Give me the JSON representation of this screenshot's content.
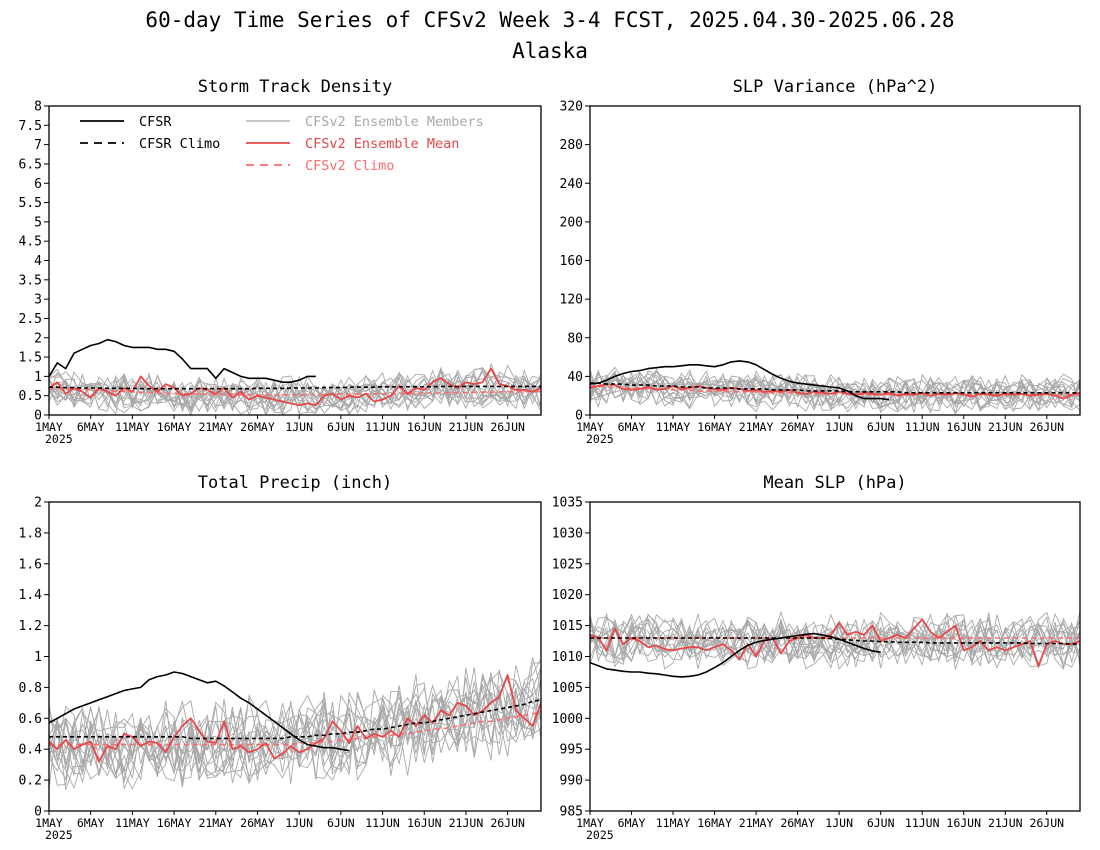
{
  "figure": {
    "title": "60-day Time Series of CFSv2 Week 3-4 FCST, 2025.04.30-2025.06.28",
    "subtitle": "Alaska"
  },
  "legend": {
    "cfsr": "CFSR",
    "cfsr_climo": "CFSR Climo",
    "members": "CFSv2 Ensemble Members",
    "ens_mean": "CFSv2 Ensemble Mean",
    "cfsv2_climo": "CFSv2 Climo"
  },
  "colors": {
    "cfsr": "#000000",
    "members": "#a8a8a8",
    "ens_mean": "#e8474a",
    "cfsv2_climo": "#ff6b6b"
  },
  "x_axis": {
    "start_date": "2025-05-01",
    "num_days": 60,
    "tick_labels": [
      "1MAY",
      "6MAY",
      "11MAY",
      "16MAY",
      "21MAY",
      "26MAY",
      "1JUN",
      "6JUN",
      "11JUN",
      "16JUN",
      "21JUN",
      "26JUN"
    ],
    "year_label": "2025"
  },
  "chart_data": [
    {
      "type": "line",
      "title": "Storm Track Density",
      "ylim": [
        0,
        8
      ],
      "yticks": [
        "0",
        "0.5",
        "1",
        "1.5",
        "2",
        "2.5",
        "3",
        "3.5",
        "4",
        "4.5",
        "5",
        "5.5",
        "6",
        "6.5",
        "7",
        "7.5",
        "8"
      ],
      "cfsr": [
        1.0,
        1.35,
        1.2,
        1.6,
        1.7,
        1.8,
        1.85,
        1.95,
        1.9,
        1.8,
        1.75,
        1.75,
        1.75,
        1.7,
        1.7,
        1.65,
        1.45,
        1.2,
        1.2,
        1.2,
        0.95,
        1.2,
        1.1,
        1.0,
        0.95,
        0.95,
        0.95,
        0.9,
        0.85,
        0.85,
        0.9,
        1.0,
        1.0
      ],
      "cfsr_climo": [
        0.72,
        0.72,
        0.71,
        0.71,
        0.7,
        0.7,
        0.7,
        0.69,
        0.69,
        0.69,
        0.69,
        0.68,
        0.68,
        0.68,
        0.68,
        0.68,
        0.68,
        0.68,
        0.68,
        0.68,
        0.68,
        0.68,
        0.68,
        0.68,
        0.68,
        0.69,
        0.69,
        0.69,
        0.69,
        0.7,
        0.7,
        0.7,
        0.7,
        0.71,
        0.71,
        0.71,
        0.72,
        0.72,
        0.72,
        0.72,
        0.73,
        0.73,
        0.73,
        0.73,
        0.73,
        0.73,
        0.73,
        0.74,
        0.74,
        0.74,
        0.74,
        0.74,
        0.74,
        0.74,
        0.74,
        0.74,
        0.74,
        0.74,
        0.74,
        0.74
      ],
      "ens_mean": [
        0.7,
        0.85,
        0.55,
        0.7,
        0.6,
        0.45,
        0.7,
        0.6,
        0.5,
        0.7,
        0.6,
        1.0,
        0.75,
        0.6,
        0.8,
        0.7,
        0.5,
        0.55,
        0.7,
        0.65,
        0.55,
        0.7,
        0.45,
        0.6,
        0.4,
        0.5,
        0.45,
        0.4,
        0.35,
        0.3,
        0.25,
        0.3,
        0.25,
        0.5,
        0.55,
        0.4,
        0.5,
        0.45,
        0.55,
        0.35,
        0.4,
        0.5,
        0.75,
        0.55,
        0.7,
        0.65,
        0.85,
        0.95,
        0.8,
        0.7,
        0.85,
        0.8,
        0.85,
        1.2,
        0.8,
        0.75,
        0.65,
        0.65,
        0.6,
        0.7
      ],
      "cfsv2_climo": [
        0.7,
        0.69,
        0.68,
        0.67,
        0.66,
        0.65,
        0.64,
        0.63,
        0.62,
        0.61,
        0.6,
        0.59,
        0.58,
        0.57,
        0.56,
        0.56,
        0.55,
        0.55,
        0.54,
        0.54,
        0.53,
        0.53,
        0.53,
        0.52,
        0.52,
        0.52,
        0.52,
        0.52,
        0.52,
        0.52,
        0.52,
        0.53,
        0.53,
        0.53,
        0.53,
        0.54,
        0.54,
        0.54,
        0.55,
        0.55,
        0.55,
        0.55,
        0.56,
        0.56,
        0.56,
        0.57,
        0.57,
        0.57,
        0.58,
        0.58,
        0.58,
        0.59,
        0.59,
        0.59,
        0.6,
        0.6,
        0.6,
        0.6,
        0.61,
        0.61
      ],
      "members_center": [
        0.6,
        0.65,
        0.6,
        0.6,
        0.6,
        0.55,
        0.6,
        0.55,
        0.55,
        0.6,
        0.55,
        0.6,
        0.6,
        0.55,
        0.55,
        0.55,
        0.5,
        0.5,
        0.55,
        0.5,
        0.5,
        0.5,
        0.5,
        0.5,
        0.45,
        0.45,
        0.45,
        0.45,
        0.45,
        0.45,
        0.45,
        0.45,
        0.45,
        0.5,
        0.5,
        0.5,
        0.5,
        0.5,
        0.5,
        0.5,
        0.55,
        0.55,
        0.6,
        0.6,
        0.6,
        0.65,
        0.7,
        0.7,
        0.7,
        0.7,
        0.7,
        0.7,
        0.7,
        0.75,
        0.7,
        0.7,
        0.65,
        0.65,
        0.6,
        0.6
      ],
      "members_spread": 0.55,
      "members_count": 16,
      "members_min": 0
    },
    {
      "type": "line",
      "title": "SLP Variance (hPa^2)",
      "ylim": [
        0,
        320
      ],
      "yticks": [
        "0",
        "40",
        "80",
        "120",
        "160",
        "200",
        "240",
        "280",
        "320"
      ],
      "cfsr": [
        32,
        33,
        36,
        40,
        43,
        45,
        46,
        48,
        49,
        50,
        50,
        51,
        52,
        52,
        51,
        50,
        52,
        55,
        56,
        55,
        52,
        47,
        42,
        38,
        35,
        33,
        32,
        31,
        30,
        29,
        28,
        25,
        20,
        17,
        17,
        17,
        16
      ],
      "cfsr_climo": [
        33,
        33,
        32,
        32,
        32,
        31,
        31,
        31,
        30,
        30,
        30,
        29,
        29,
        29,
        28,
        28,
        28,
        28,
        27,
        27,
        27,
        27,
        26,
        26,
        26,
        26,
        25,
        25,
        25,
        25,
        25,
        24,
        24,
        24,
        24,
        24,
        24,
        24,
        23,
        23,
        23,
        23,
        23,
        23,
        23,
        23,
        23,
        23,
        23,
        23,
        23,
        23,
        23,
        23,
        23,
        23,
        23,
        23,
        23,
        23
      ],
      "ens_mean": [
        28,
        30,
        32,
        31,
        27,
        26,
        27,
        29,
        26,
        27,
        30,
        27,
        28,
        30,
        28,
        27,
        26,
        28,
        27,
        25,
        26,
        24,
        25,
        24,
        26,
        23,
        22,
        24,
        23,
        22,
        24,
        22,
        21,
        23,
        22,
        21,
        23,
        20,
        22,
        21,
        23,
        20,
        22,
        21,
        23,
        21,
        19,
        22,
        21,
        20,
        22,
        21,
        22,
        20,
        21,
        22,
        20,
        17,
        21,
        23
      ],
      "cfsv2_climo": [
        30,
        30,
        29,
        29,
        28,
        28,
        28,
        27,
        27,
        27,
        26,
        26,
        26,
        25,
        25,
        25,
        25,
        24,
        24,
        24,
        24,
        23,
        23,
        23,
        23,
        23,
        22,
        22,
        22,
        22,
        22,
        22,
        22,
        21,
        21,
        21,
        21,
        21,
        21,
        21,
        21,
        21,
        21,
        21,
        21,
        21,
        21,
        21,
        21,
        21,
        21,
        21,
        21,
        21,
        21,
        21,
        21,
        21,
        21,
        21
      ],
      "members_center": [
        28,
        29,
        29,
        29,
        28,
        27,
        27,
        27,
        27,
        27,
        27,
        27,
        27,
        27,
        27,
        26,
        26,
        26,
        26,
        25,
        25,
        25,
        25,
        24,
        24,
        24,
        23,
        23,
        23,
        23,
        22,
        22,
        22,
        22,
        22,
        22,
        22,
        22,
        22,
        22,
        22,
        22,
        22,
        22,
        22,
        22,
        22,
        22,
        22,
        22,
        22,
        22,
        22,
        22,
        22,
        22,
        22,
        22,
        22,
        22
      ],
      "members_spread": 20,
      "members_count": 16,
      "members_min": 0
    },
    {
      "type": "line",
      "title": "Total Precip (inch)",
      "ylim": [
        0,
        2
      ],
      "yticks": [
        "0",
        "0.2",
        "0.4",
        "0.6",
        "0.8",
        "1",
        "1.2",
        "1.4",
        "1.6",
        "1.8",
        "2"
      ],
      "cfsr": [
        0.57,
        0.6,
        0.63,
        0.66,
        0.68,
        0.7,
        0.72,
        0.74,
        0.76,
        0.78,
        0.79,
        0.8,
        0.85,
        0.87,
        0.88,
        0.9,
        0.89,
        0.87,
        0.85,
        0.83,
        0.84,
        0.81,
        0.77,
        0.73,
        0.7,
        0.66,
        0.62,
        0.58,
        0.54,
        0.5,
        0.46,
        0.43,
        0.42,
        0.41,
        0.41,
        0.4,
        0.39
      ],
      "cfsr_climo": [
        0.48,
        0.48,
        0.48,
        0.48,
        0.48,
        0.48,
        0.48,
        0.48,
        0.48,
        0.48,
        0.48,
        0.48,
        0.48,
        0.48,
        0.48,
        0.48,
        0.48,
        0.47,
        0.47,
        0.47,
        0.47,
        0.47,
        0.47,
        0.47,
        0.47,
        0.47,
        0.47,
        0.47,
        0.47,
        0.48,
        0.48,
        0.48,
        0.49,
        0.49,
        0.5,
        0.5,
        0.51,
        0.51,
        0.52,
        0.53,
        0.53,
        0.54,
        0.55,
        0.56,
        0.57,
        0.57,
        0.58,
        0.59,
        0.6,
        0.61,
        0.62,
        0.63,
        0.64,
        0.65,
        0.66,
        0.67,
        0.68,
        0.69,
        0.71,
        0.72
      ],
      "ens_mean": [
        0.45,
        0.4,
        0.46,
        0.4,
        0.43,
        0.45,
        0.32,
        0.42,
        0.4,
        0.5,
        0.48,
        0.42,
        0.45,
        0.44,
        0.38,
        0.48,
        0.55,
        0.6,
        0.52,
        0.45,
        0.44,
        0.58,
        0.4,
        0.42,
        0.38,
        0.4,
        0.44,
        0.34,
        0.37,
        0.42,
        0.38,
        0.4,
        0.44,
        0.47,
        0.58,
        0.52,
        0.44,
        0.55,
        0.47,
        0.5,
        0.48,
        0.52,
        0.48,
        0.6,
        0.55,
        0.62,
        0.57,
        0.65,
        0.62,
        0.7,
        0.68,
        0.62,
        0.65,
        0.7,
        0.74,
        0.88,
        0.65,
        0.6,
        0.55,
        0.7
      ],
      "cfsv2_climo": [
        0.43,
        0.43,
        0.43,
        0.43,
        0.43,
        0.43,
        0.43,
        0.43,
        0.43,
        0.43,
        0.43,
        0.43,
        0.43,
        0.43,
        0.43,
        0.43,
        0.43,
        0.43,
        0.43,
        0.43,
        0.43,
        0.43,
        0.43,
        0.43,
        0.43,
        0.43,
        0.43,
        0.43,
        0.43,
        0.43,
        0.44,
        0.44,
        0.44,
        0.45,
        0.45,
        0.46,
        0.46,
        0.47,
        0.47,
        0.48,
        0.48,
        0.49,
        0.5,
        0.5,
        0.51,
        0.52,
        0.53,
        0.53,
        0.54,
        0.55,
        0.56,
        0.57,
        0.58,
        0.58,
        0.59,
        0.6,
        0.61,
        0.62,
        0.63,
        0.64
      ],
      "members_center": [
        0.44,
        0.44,
        0.44,
        0.44,
        0.44,
        0.44,
        0.44,
        0.44,
        0.44,
        0.44,
        0.44,
        0.44,
        0.44,
        0.44,
        0.44,
        0.44,
        0.44,
        0.44,
        0.44,
        0.44,
        0.44,
        0.44,
        0.44,
        0.44,
        0.44,
        0.44,
        0.44,
        0.44,
        0.44,
        0.45,
        0.45,
        0.46,
        0.46,
        0.47,
        0.48,
        0.48,
        0.49,
        0.5,
        0.5,
        0.51,
        0.52,
        0.53,
        0.54,
        0.55,
        0.56,
        0.57,
        0.58,
        0.59,
        0.6,
        0.61,
        0.62,
        0.63,
        0.64,
        0.65,
        0.66,
        0.67,
        0.68,
        0.68,
        0.69,
        0.7
      ],
      "members_spread": 0.3,
      "members_count": 16,
      "members_min": 0.1
    },
    {
      "type": "line",
      "title": "Mean SLP (hPa)",
      "ylim": [
        985,
        1035
      ],
      "yticks": [
        "985",
        "990",
        "995",
        "1000",
        "1005",
        "1010",
        "1015",
        "1020",
        "1025",
        "1030",
        "1035"
      ],
      "cfsr": [
        1009,
        1008.5,
        1008,
        1007.8,
        1007.6,
        1007.5,
        1007.5,
        1007.3,
        1007.2,
        1007,
        1006.8,
        1006.7,
        1006.8,
        1007,
        1007.5,
        1008.2,
        1009,
        1010,
        1011,
        1011.8,
        1012.3,
        1012.6,
        1012.8,
        1013,
        1013.2,
        1013.4,
        1013.6,
        1013.7,
        1013.5,
        1013.2,
        1012.8,
        1012.3,
        1011.8,
        1011.3,
        1010.9,
        1010.7
      ],
      "cfsr_climo": [
        1013,
        1013,
        1013,
        1013,
        1013,
        1013,
        1013,
        1013,
        1013,
        1013,
        1013,
        1013,
        1013,
        1013,
        1013,
        1013,
        1013,
        1013,
        1013,
        1013,
        1013,
        1013,
        1013,
        1013,
        1013,
        1013,
        1013,
        1013,
        1013,
        1012.9,
        1012.8,
        1012.7,
        1012.6,
        1012.5,
        1012.5,
        1012.4,
        1012.4,
        1012.3,
        1012.3,
        1012.3,
        1012.3,
        1012.2,
        1012.2,
        1012.2,
        1012.2,
        1012.2,
        1012.2,
        1012.2,
        1012.2,
        1012.2,
        1012.2,
        1012.2,
        1012.2,
        1012.1,
        1012.1,
        1012.1,
        1012.1,
        1012.1,
        1012,
        1012
      ],
      "ens_mean": [
        1013.5,
        1013,
        1011,
        1014.5,
        1012,
        1013,
        1012.5,
        1011.5,
        1011.8,
        1011.2,
        1011,
        1011.3,
        1011.5,
        1011.5,
        1011,
        1011.5,
        1012,
        1011,
        1009.5,
        1012,
        1010,
        1012.5,
        1013,
        1010.5,
        1012.5,
        1013,
        1013.5,
        1013,
        1013,
        1013.5,
        1015.5,
        1013.5,
        1014,
        1013.5,
        1015,
        1012.5,
        1013,
        1013.5,
        1013,
        1014.5,
        1016,
        1014,
        1013,
        1014,
        1015,
        1011,
        1011.5,
        1012.5,
        1011,
        1011.5,
        1011,
        1011.5,
        1012,
        1012.5,
        1008.5,
        1012,
        1012.5,
        1012,
        1012,
        1012.5
      ],
      "cfsv2_climo": [
        1013,
        1013,
        1013,
        1013,
        1013,
        1013,
        1013,
        1013,
        1013,
        1013,
        1013,
        1013,
        1013,
        1013,
        1013,
        1013,
        1013,
        1013,
        1013,
        1013,
        1013,
        1013,
        1013,
        1013,
        1013,
        1013,
        1013,
        1013,
        1013,
        1013,
        1013,
        1013,
        1013,
        1013,
        1013,
        1013,
        1013,
        1013,
        1013,
        1013,
        1013,
        1013,
        1013,
        1013,
        1013,
        1013,
        1013,
        1013,
        1013,
        1013,
        1013,
        1013,
        1013,
        1013,
        1013,
        1013,
        1013,
        1013,
        1013,
        1013
      ],
      "members_center": [
        1012.5,
        1012.5,
        1012.5,
        1012.5,
        1012.5,
        1012.5,
        1012.5,
        1012.5,
        1012.5,
        1012.5,
        1012.5,
        1012.5,
        1012.5,
        1012.5,
        1012.5,
        1012.5,
        1012.5,
        1012.5,
        1012.5,
        1012.5,
        1012.5,
        1012.5,
        1012.5,
        1012.5,
        1012.5,
        1012.5,
        1012.5,
        1012.5,
        1012.5,
        1012.5,
        1012.5,
        1012.5,
        1012.5,
        1012.5,
        1012.5,
        1012.5,
        1012.5,
        1012.5,
        1012.5,
        1012.5,
        1012.5,
        1012.5,
        1012.5,
        1012.5,
        1012.5,
        1012.5,
        1012.5,
        1012.5,
        1012.5,
        1012.5,
        1012.5,
        1012.5,
        1012.5,
        1012.5,
        1012.5,
        1012.5,
        1012.5,
        1012.5,
        1012.5,
        1012.5
      ],
      "members_spread": 4.5,
      "members_count": 16,
      "members_min": 985
    }
  ]
}
